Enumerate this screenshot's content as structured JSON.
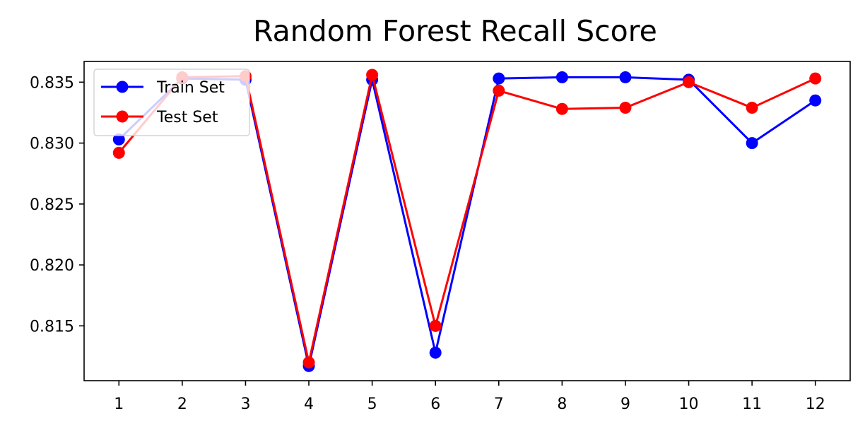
{
  "chart_data": {
    "type": "line",
    "title": "Random Forest Recall Score",
    "xlabel": "",
    "ylabel": "",
    "x": [
      1,
      2,
      3,
      4,
      5,
      6,
      7,
      8,
      9,
      10,
      11,
      12
    ],
    "xticks": [
      "1",
      "2",
      "3",
      "4",
      "5",
      "6",
      "7",
      "8",
      "9",
      "10",
      "11",
      "12"
    ],
    "yticks": [
      "0.815",
      "0.820",
      "0.825",
      "0.830",
      "0.835"
    ],
    "ytick_values": [
      0.815,
      0.82,
      0.825,
      0.83,
      0.835
    ],
    "xlim": [
      0.45,
      12.55
    ],
    "ylim": [
      0.8105,
      0.8367
    ],
    "grid": false,
    "legend_position": "top-left",
    "series": [
      {
        "name": "Train Set",
        "color": "#0000ff",
        "marker": "circle",
        "values": [
          0.8303,
          0.8353,
          0.8352,
          0.8117,
          0.8352,
          0.8128,
          0.8353,
          0.8354,
          0.8354,
          0.8352,
          0.83,
          0.8335
        ]
      },
      {
        "name": "Test Set",
        "color": "#ff0000",
        "marker": "circle",
        "values": [
          0.8292,
          0.8354,
          0.8355,
          0.812,
          0.8356,
          0.815,
          0.8343,
          0.8328,
          0.8329,
          0.835,
          0.8329,
          0.8353
        ]
      }
    ]
  }
}
